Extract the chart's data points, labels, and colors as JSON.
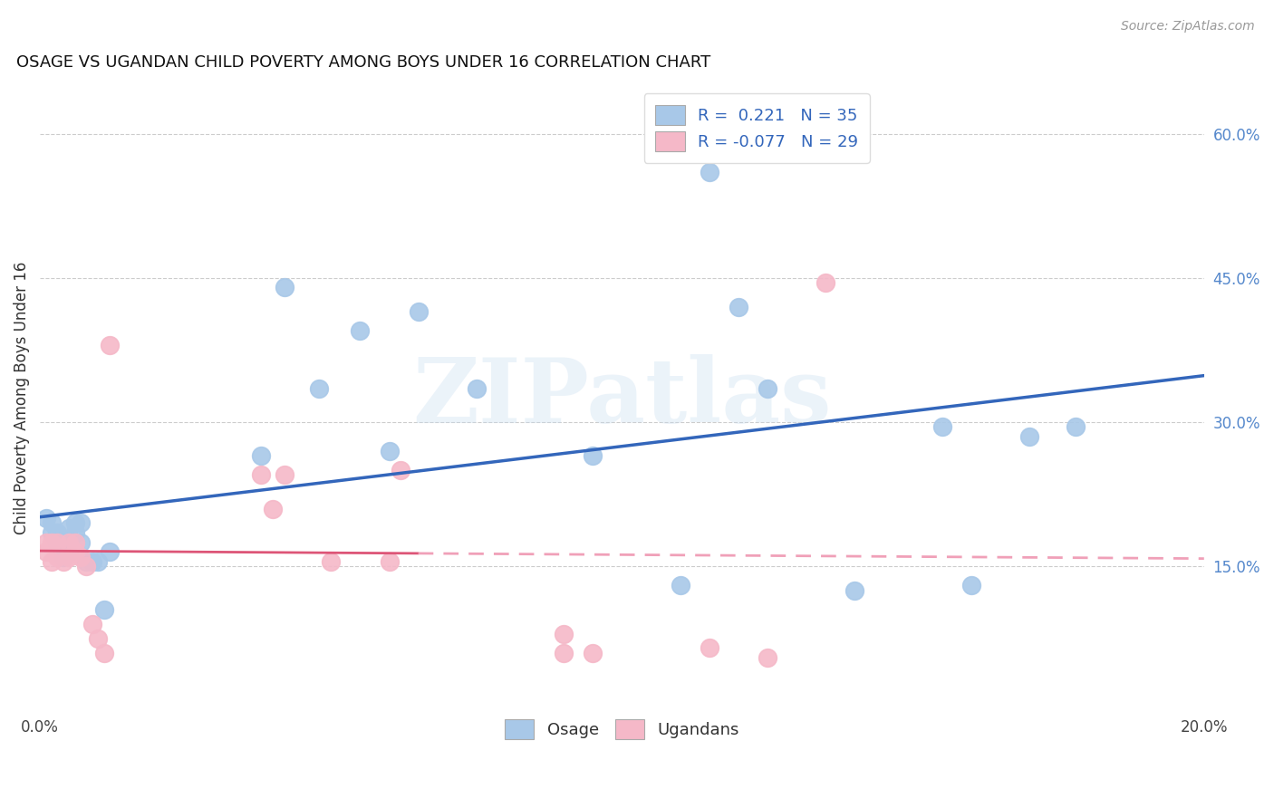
{
  "title": "OSAGE VS UGANDAN CHILD POVERTY AMONG BOYS UNDER 16 CORRELATION CHART",
  "source": "Source: ZipAtlas.com",
  "ylabel": "Child Poverty Among Boys Under 16",
  "xlim": [
    0.0,
    0.2
  ],
  "ylim": [
    0.0,
    0.65
  ],
  "xtick_positions": [
    0.0,
    0.04,
    0.08,
    0.12,
    0.16,
    0.2
  ],
  "xticklabels": [
    "0.0%",
    "",
    "",
    "",
    "",
    "20.0%"
  ],
  "yticks_right": [
    0.15,
    0.3,
    0.45,
    0.6
  ],
  "ytick_labels_right": [
    "15.0%",
    "30.0%",
    "45.0%",
    "60.0%"
  ],
  "osage_color": "#a8c8e8",
  "osage_edge_color": "#a8c8e8",
  "osage_line_color": "#3366bb",
  "ugandan_color": "#f5b8c8",
  "ugandan_edge_color": "#f5b8c8",
  "ugandan_line_color": "#dd5577",
  "ugandan_dash_color": "#f0a0b8",
  "R_osage": 0.221,
  "N_osage": 35,
  "R_ugandan": -0.077,
  "N_ugandan": 29,
  "legend_osage_label": "Osage",
  "legend_ugandan_label": "Ugandans",
  "watermark": "ZIPatlas",
  "background_color": "#ffffff",
  "grid_color": "#cccccc",
  "title_fontsize": 13,
  "axis_label_fontsize": 12,
  "tick_fontsize": 12,
  "legend_fontsize": 13,
  "osage_x": [
    0.001,
    0.002,
    0.002,
    0.003,
    0.003,
    0.004,
    0.004,
    0.005,
    0.005,
    0.006,
    0.006,
    0.007,
    0.007,
    0.008,
    0.009,
    0.01,
    0.011,
    0.012,
    0.038,
    0.042,
    0.048,
    0.055,
    0.06,
    0.065,
    0.075,
    0.095,
    0.11,
    0.115,
    0.12,
    0.125,
    0.14,
    0.155,
    0.16,
    0.17,
    0.178
  ],
  "osage_y": [
    0.2,
    0.185,
    0.195,
    0.175,
    0.185,
    0.175,
    0.16,
    0.165,
    0.19,
    0.195,
    0.185,
    0.195,
    0.175,
    0.155,
    0.155,
    0.155,
    0.105,
    0.165,
    0.265,
    0.44,
    0.335,
    0.395,
    0.27,
    0.415,
    0.335,
    0.265,
    0.13,
    0.56,
    0.42,
    0.335,
    0.125,
    0.295,
    0.13,
    0.285,
    0.295
  ],
  "ugandan_x": [
    0.001,
    0.001,
    0.002,
    0.002,
    0.003,
    0.003,
    0.004,
    0.005,
    0.005,
    0.006,
    0.006,
    0.007,
    0.008,
    0.009,
    0.01,
    0.011,
    0.012,
    0.038,
    0.04,
    0.042,
    0.05,
    0.06,
    0.062,
    0.09,
    0.09,
    0.095,
    0.115,
    0.125,
    0.135
  ],
  "ugandan_y": [
    0.175,
    0.165,
    0.175,
    0.155,
    0.175,
    0.16,
    0.155,
    0.16,
    0.175,
    0.165,
    0.175,
    0.16,
    0.15,
    0.09,
    0.075,
    0.06,
    0.38,
    0.245,
    0.21,
    0.245,
    0.155,
    0.155,
    0.25,
    0.06,
    0.08,
    0.06,
    0.065,
    0.055,
    0.445
  ]
}
